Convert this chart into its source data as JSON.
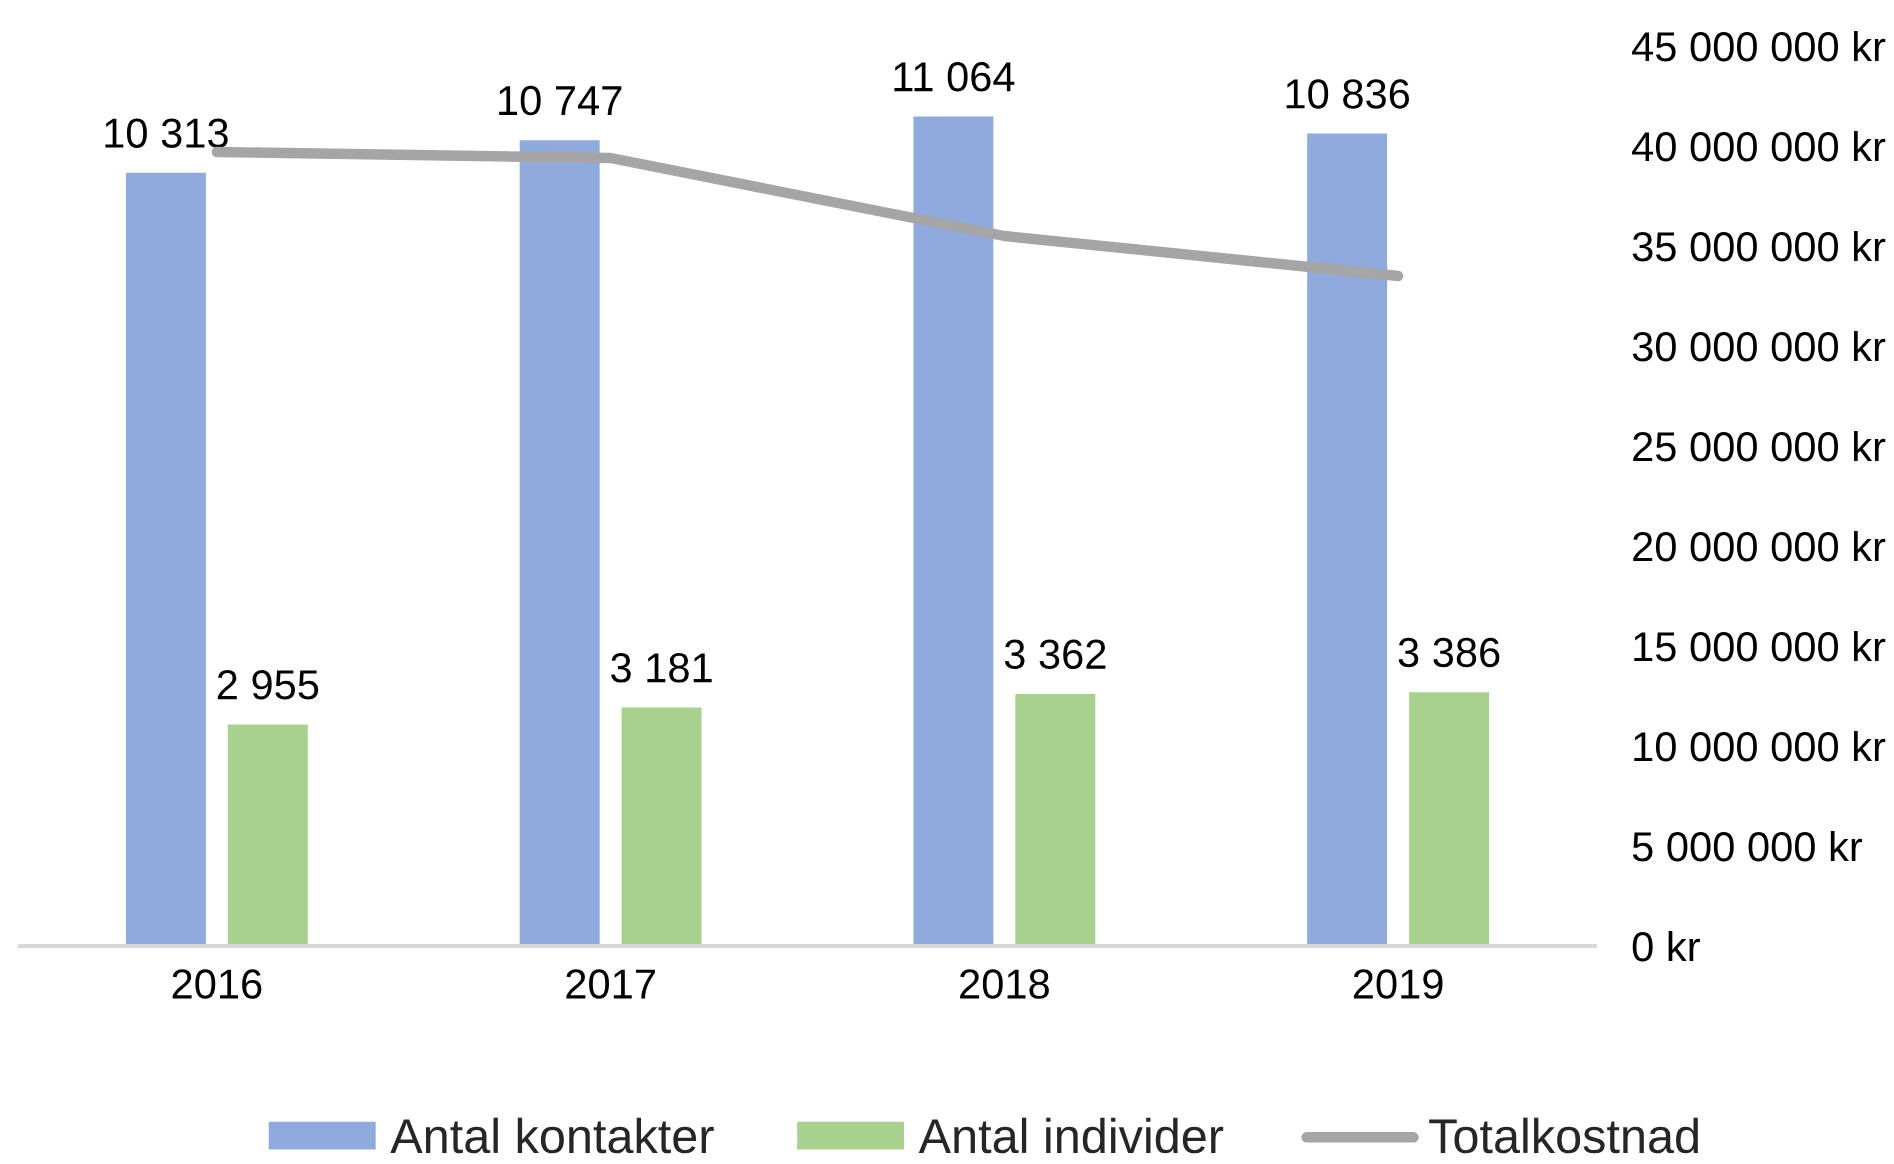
{
  "chart_data": {
    "type": "bar",
    "categories": [
      "2016",
      "2017",
      "2018",
      "2019"
    ],
    "series": [
      {
        "name": "Antal kontakter",
        "color": "#8faadc",
        "values": [
          10313,
          10747,
          11064,
          10836
        ],
        "value_labels": [
          "10 313",
          "10 747",
          "11 064",
          "10 836"
        ]
      },
      {
        "name": "Antal individer",
        "color": "#a9d18e",
        "values": [
          2955,
          3181,
          3362,
          3386
        ],
        "value_labels": [
          "2 955",
          "3 181",
          "3 362",
          "3 386"
        ]
      },
      {
        "name": "Totalkostnad",
        "type": "line",
        "axis": "y2",
        "color": "#a5a5a5",
        "values": [
          39700000,
          39400000,
          35500000,
          33500000
        ]
      }
    ],
    "y2lim": [
      0,
      45000000
    ],
    "y2ticks": [
      {
        "value": 0,
        "label": "0 kr"
      },
      {
        "value": 5000000,
        "label": "5 000 000 kr"
      },
      {
        "value": 10000000,
        "label": "10 000 000 kr"
      },
      {
        "value": 15000000,
        "label": "15 000 000 kr"
      },
      {
        "value": 20000000,
        "label": "20 000 000 kr"
      },
      {
        "value": 25000000,
        "label": "25 000 000 kr"
      },
      {
        "value": 30000000,
        "label": "30 000 000 kr"
      },
      {
        "value": 35000000,
        "label": "35 000 000 kr"
      },
      {
        "value": 40000000,
        "label": "40 000 000 kr"
      },
      {
        "value": 45000000,
        "label": "45 000 000 kr"
      }
    ],
    "tick_labels": [
      "x",
      "y2"
    ],
    "legend": "bottom",
    "grid": false
  }
}
